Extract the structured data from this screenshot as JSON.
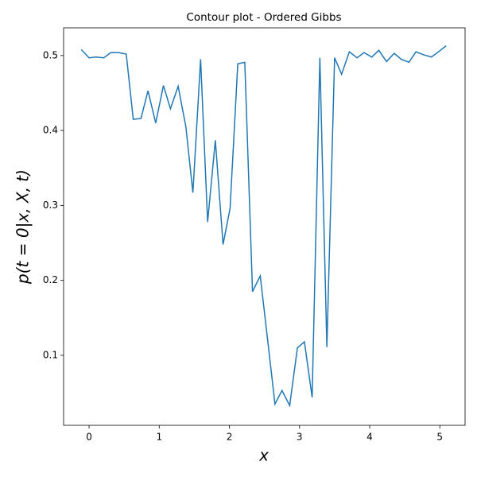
{
  "chart_data": {
    "type": "line",
    "title": "Contour plot - Ordered Gibbs",
    "xlabel": "x",
    "ylabel": "p(t = 0|x, X, t)",
    "x": [
      -0.11,
      0.0,
      0.1,
      0.21,
      0.31,
      0.42,
      0.53,
      0.63,
      0.74,
      0.84,
      0.95,
      1.06,
      1.16,
      1.27,
      1.38,
      1.48,
      1.59,
      1.69,
      1.8,
      1.91,
      2.01,
      2.12,
      2.22,
      2.33,
      2.44,
      2.54,
      2.65,
      2.75,
      2.86,
      2.97,
      3.07,
      3.18,
      3.29,
      3.39,
      3.5,
      3.6,
      3.71,
      3.82,
      3.92,
      4.03,
      4.13,
      4.24,
      4.35,
      4.45,
      4.56,
      4.66,
      4.77,
      4.88,
      4.98,
      5.09
    ],
    "values": [
      0.508,
      0.497,
      0.498,
      0.497,
      0.504,
      0.504,
      0.502,
      0.415,
      0.416,
      0.453,
      0.41,
      0.46,
      0.429,
      0.459,
      0.405,
      0.317,
      0.495,
      0.278,
      0.387,
      0.248,
      0.296,
      0.489,
      0.491,
      0.185,
      0.206,
      0.125,
      0.035,
      0.053,
      0.033,
      0.11,
      0.118,
      0.044,
      0.497,
      0.111,
      0.497,
      0.475,
      0.505,
      0.497,
      0.504,
      0.498,
      0.507,
      0.492,
      0.503,
      0.495,
      0.491,
      0.505,
      0.501,
      0.498,
      0.505,
      0.513
    ],
    "color": "#1f77b4",
    "xlim": [
      -0.363,
      5.36
    ],
    "ylim": [
      0.0066,
      0.537
    ],
    "xticks": [
      0,
      1,
      2,
      3,
      4,
      5
    ],
    "yticks": [
      0.1,
      0.2,
      0.3,
      0.4,
      0.5
    ],
    "grid": false
  }
}
